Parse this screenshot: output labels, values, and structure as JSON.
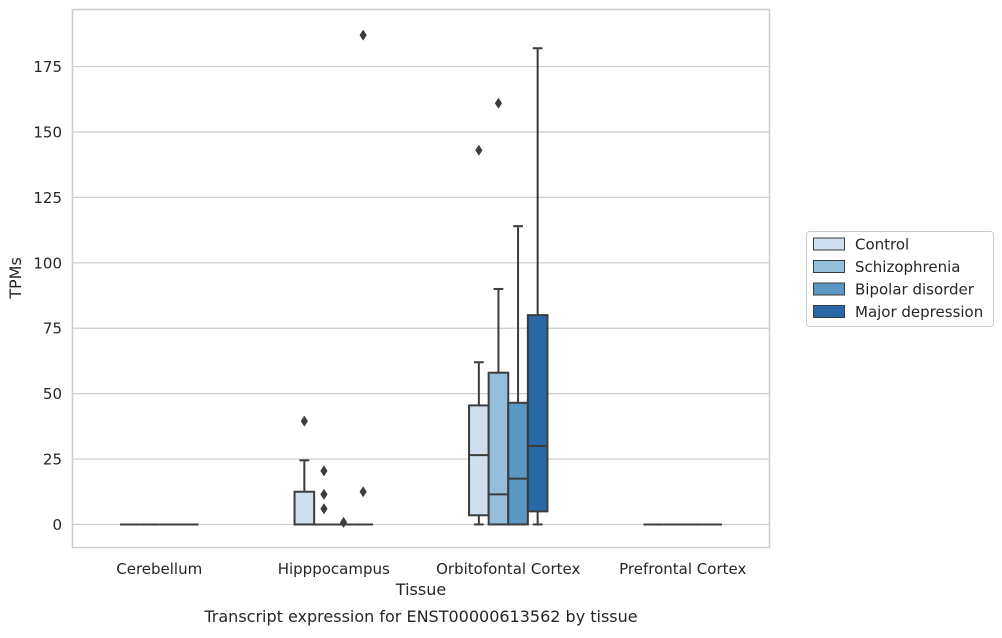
{
  "chart_data": {
    "type": "boxplot",
    "caption": "Transcript expression for ENST00000613562 by tissue",
    "xlabel": "Tissue",
    "ylabel": "TPMs",
    "ylim": [
      -9,
      197
    ],
    "yticks": [
      0,
      25,
      50,
      75,
      100,
      125,
      150,
      175
    ],
    "grid": "horizontal",
    "legend_position": "right",
    "categories": [
      "Cerebellum",
      "Hipppocampus",
      "Orbitofontal Cortex",
      "Prefrontal Cortex"
    ],
    "series": [
      {
        "name": "Control",
        "color": "#cfdff0",
        "boxes": [
          {
            "category": "Cerebellum",
            "whisker_low": 0,
            "q1": 0,
            "median": 0,
            "q3": 0,
            "whisker_high": 0,
            "outliers": []
          },
          {
            "category": "Hipppocampus",
            "whisker_low": 0,
            "q1": 0,
            "median": 0,
            "q3": 12.5,
            "whisker_high": 24.5,
            "outliers": [
              39.5
            ]
          },
          {
            "category": "Orbitofontal Cortex",
            "whisker_low": 0,
            "q1": 3.5,
            "median": 26.5,
            "q3": 45.5,
            "whisker_high": 62,
            "outliers": [
              143
            ]
          },
          {
            "category": "Prefrontal Cortex",
            "whisker_low": 0,
            "q1": 0,
            "median": 0,
            "q3": 0,
            "whisker_high": 0,
            "outliers": []
          }
        ]
      },
      {
        "name": "Schizophrenia",
        "color": "#94bfdc",
        "boxes": [
          {
            "category": "Cerebellum",
            "whisker_low": 0,
            "q1": 0,
            "median": 0,
            "q3": 0,
            "whisker_high": 0,
            "outliers": []
          },
          {
            "category": "Hipppocampus",
            "whisker_low": 0,
            "q1": 0,
            "median": 0,
            "q3": 0,
            "whisker_high": 0,
            "outliers": [
              20.5,
              11.5,
              6
            ]
          },
          {
            "category": "Orbitofontal Cortex",
            "whisker_low": 0,
            "q1": 0,
            "median": 11.5,
            "q3": 58,
            "whisker_high": 90,
            "outliers": [
              161
            ]
          },
          {
            "category": "Prefrontal Cortex",
            "whisker_low": 0,
            "q1": 0,
            "median": 0,
            "q3": 0,
            "whisker_high": 0,
            "outliers": []
          }
        ]
      },
      {
        "name": "Bipolar disorder",
        "color": "#5a97c4",
        "boxes": [
          {
            "category": "Cerebellum",
            "whisker_low": 0,
            "q1": 0,
            "median": 0,
            "q3": 0,
            "whisker_high": 0,
            "outliers": []
          },
          {
            "category": "Hipppocampus",
            "whisker_low": 0,
            "q1": 0,
            "median": 0,
            "q3": 0,
            "whisker_high": 0,
            "outliers": [
              0.8
            ]
          },
          {
            "category": "Orbitofontal Cortex",
            "whisker_low": 0,
            "q1": 0,
            "median": 17.5,
            "q3": 46.5,
            "whisker_high": 114,
            "outliers": []
          },
          {
            "category": "Prefrontal Cortex",
            "whisker_low": 0,
            "q1": 0,
            "median": 0,
            "q3": 0,
            "whisker_high": 0,
            "outliers": []
          }
        ]
      },
      {
        "name": "Major depression",
        "color": "#2868a9",
        "boxes": [
          {
            "category": "Cerebellum",
            "whisker_low": 0,
            "q1": 0,
            "median": 0,
            "q3": 0,
            "whisker_high": 0,
            "outliers": []
          },
          {
            "category": "Hipppocampus",
            "whisker_low": 0,
            "q1": 0,
            "median": 0,
            "q3": 0,
            "whisker_high": 0,
            "outliers": [
              187,
              12.5
            ]
          },
          {
            "category": "Orbitofontal Cortex",
            "whisker_low": 0,
            "q1": 5,
            "median": 30,
            "q3": 80,
            "whisker_high": 182,
            "outliers": []
          },
          {
            "category": "Prefrontal Cortex",
            "whisker_low": 0,
            "q1": 0,
            "median": 0,
            "q3": 0,
            "whisker_high": 0,
            "outliers": []
          }
        ]
      }
    ]
  }
}
